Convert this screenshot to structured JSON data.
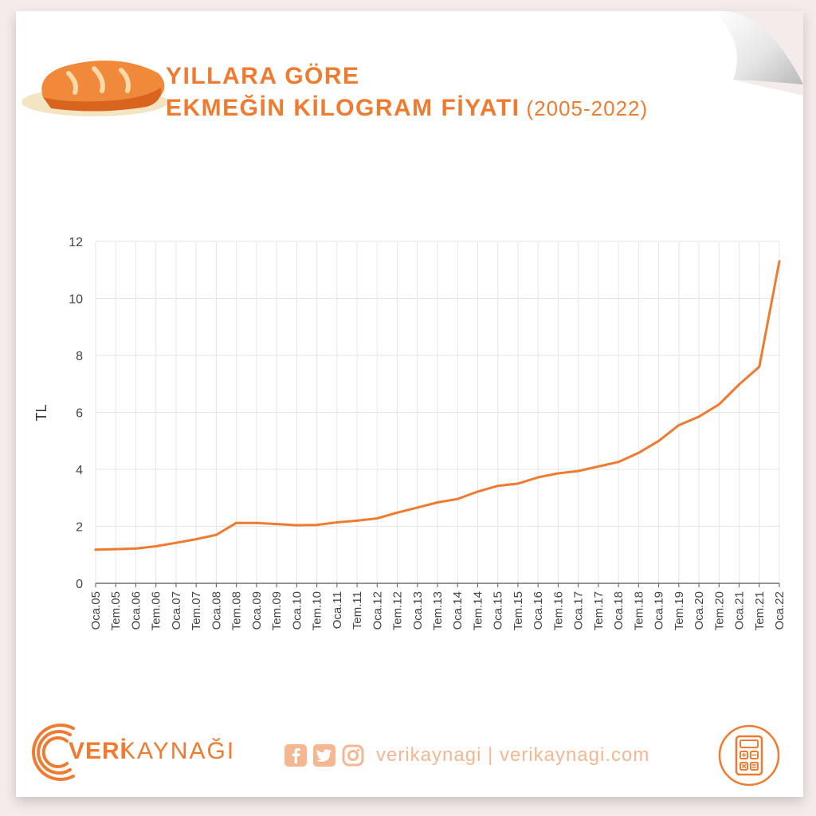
{
  "header": {
    "title_line1": "YILLARA GÖRE",
    "title_line2": "EKMEĞİN KİLOGRAM FİYATI",
    "title_years": "(2005-2022)"
  },
  "footer": {
    "brand_veri": "VERİ",
    "brand_kaynagi": "KAYNAĞI",
    "social_text": "verikaynagi | verikaynagi.com",
    "icons": [
      "bread-icon",
      "facebook-icon",
      "twitter-icon",
      "instagram-icon",
      "calculator-icon"
    ]
  },
  "colors": {
    "accent": "#f07b30",
    "line": "#f07b30",
    "grid": "#e6e6e6",
    "background": "#f4ecea"
  },
  "chart_data": {
    "type": "line",
    "ylabel": "TL",
    "xlabel": "",
    "ylim": [
      0,
      12
    ],
    "yticks": [
      0,
      2,
      4,
      6,
      8,
      10,
      12
    ],
    "grid": true,
    "xtick_labels": [
      "Oca.05",
      "Tem.05",
      "Oca.06",
      "Tem.06",
      "Oca.07",
      "Tem.07",
      "Oca.08",
      "Tem.08",
      "Oca.09",
      "Tem.09",
      "Oca.10",
      "Tem.10",
      "Oca.11",
      "Tem.11",
      "Oca.12",
      "Tem.12",
      "Oca.13",
      "Tem.13",
      "Oca.14",
      "Tem.14",
      "Oca.15",
      "Tem.15",
      "Oca.16",
      "Tem.16",
      "Oca.17",
      "Tem.17",
      "Oca.18",
      "Tem.18",
      "Oca.19",
      "Tem.19",
      "Oca.20",
      "Tem.20",
      "Oca.21",
      "Tem.21",
      "Oca.22"
    ],
    "x": [
      "Oca.05",
      "Tem.05",
      "Oca.06",
      "Tem.06",
      "Oca.07",
      "Tem.07",
      "Oca.08",
      "Tem.08",
      "Oca.09",
      "Tem.09",
      "Oca.10",
      "Tem.10",
      "Oca.11",
      "Tem.11",
      "Oca.12",
      "Tem.12",
      "Oca.13",
      "Tem.13",
      "Oca.14",
      "Tem.14",
      "Oca.15",
      "Tem.15",
      "Oca.16",
      "Tem.16",
      "Oca.17",
      "Tem.17",
      "Oca.18",
      "Tem.18",
      "Oca.19",
      "Tem.19",
      "Oca.20",
      "Tem.20",
      "Oca.21",
      "Tem.21",
      "Oca.22"
    ],
    "series": [
      {
        "values": [
          1.18,
          1.2,
          1.22,
          1.3,
          1.42,
          1.55,
          1.7,
          2.12,
          2.12,
          2.08,
          2.04,
          2.05,
          2.14,
          2.2,
          2.28,
          2.48,
          2.66,
          2.84,
          2.96,
          3.22,
          3.42,
          3.5,
          3.72,
          3.86,
          3.94,
          4.1,
          4.26,
          4.58,
          5.0,
          5.55,
          5.85,
          6.28,
          6.98,
          7.6,
          11.3
        ]
      }
    ]
  }
}
